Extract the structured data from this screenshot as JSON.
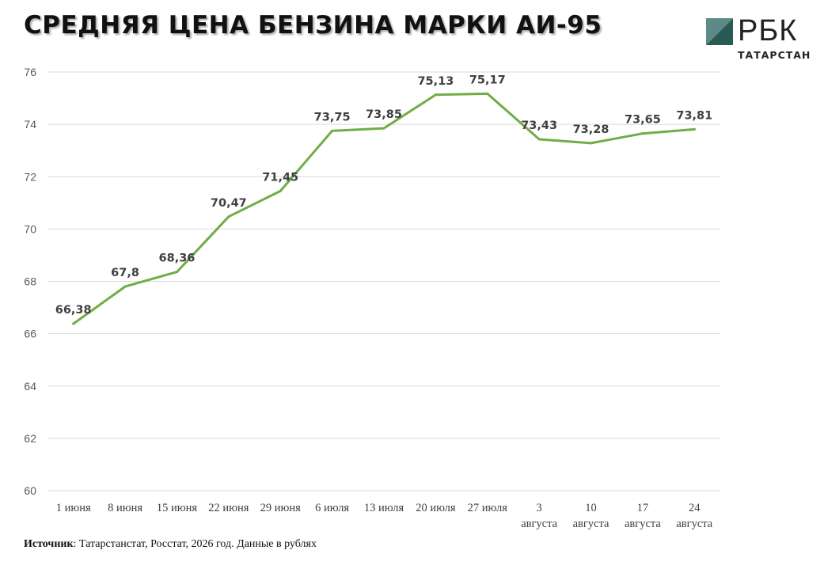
{
  "header": {
    "title": "СРЕДНЯЯ ЦЕНА БЕНЗИНА МАРКИ АИ-95"
  },
  "logo": {
    "name": "РБК",
    "region": "ТАТАРСТАН",
    "color": "#2a5a56"
  },
  "chart_data": {
    "type": "line",
    "title": "СРЕДНЯЯ ЦЕНА БЕНЗИНА МАРКИ АИ-95",
    "xlabel": "",
    "ylabel": "",
    "categories": [
      [
        "1 июня"
      ],
      [
        "8 июня"
      ],
      [
        "15 июня"
      ],
      [
        "22 июня"
      ],
      [
        "29 июня"
      ],
      [
        "6 июля"
      ],
      [
        "13 июля"
      ],
      [
        "20 июля"
      ],
      [
        "27 июля"
      ],
      [
        "3",
        "августа"
      ],
      [
        "10",
        "августа"
      ],
      [
        "17",
        "августа"
      ],
      [
        "24",
        "августа"
      ]
    ],
    "series": [
      {
        "values": [
          66.38,
          67.8,
          68.36,
          70.47,
          71.45,
          73.75,
          73.85,
          75.13,
          75.17,
          73.43,
          73.28,
          73.65,
          73.81
        ],
        "labels": [
          "66,38",
          "67,8",
          "68,36",
          "70,47",
          "71,45",
          "73,75",
          "73,85",
          "75,13",
          "75,17",
          "73,43",
          "73,28",
          "73,65",
          "73,81"
        ],
        "color": "#70ad47"
      }
    ],
    "ylim": [
      60,
      76
    ],
    "yticks": [
      "60",
      "62",
      "64",
      "66",
      "68",
      "70",
      "72",
      "74",
      "76"
    ],
    "grid": true,
    "legend": "none"
  },
  "footer": {
    "source_label": "Источник",
    "source_text": ": Татарстанстат, Росстат, 2026 год. Данные в рублях"
  }
}
